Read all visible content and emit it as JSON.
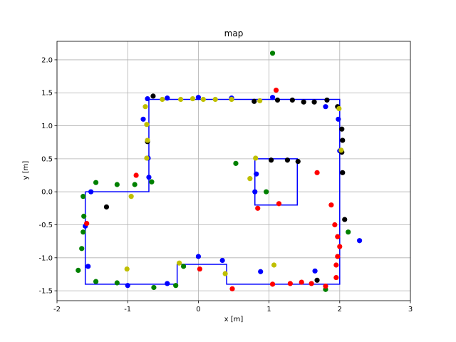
{
  "chart_data": {
    "type": "scatter",
    "title": "map",
    "xlabel": "x [m]",
    "ylabel": "y [m]",
    "xlim": [
      -2,
      3
    ],
    "ylim": [
      -1.65,
      2.28
    ],
    "grid": true,
    "x_ticks": [
      "-2",
      "-1",
      "0",
      "1",
      "2",
      "3"
    ],
    "y_ticks": [
      "-1.5",
      "-1.0",
      "-0.5",
      "0.0",
      "0.5",
      "1.0",
      "1.5",
      "2.0"
    ],
    "colors": {
      "blue": "#0000ff",
      "green": "#008000",
      "red": "#ff0000",
      "black": "#000000",
      "yellow": "#bfbf00",
      "outline": "#0000ff",
      "grid": "#b0b0b0"
    },
    "outer_outline": [
      [
        -1.6,
        0.0
      ],
      [
        -0.7,
        0.0
      ],
      [
        -0.7,
        1.4
      ],
      [
        2.0,
        1.4
      ],
      [
        2.0,
        -1.4
      ],
      [
        0.4,
        -1.4
      ],
      [
        0.4,
        -1.1
      ],
      [
        -0.3,
        -1.1
      ],
      [
        -0.3,
        -1.4
      ],
      [
        -1.6,
        -1.4
      ],
      [
        -1.6,
        0.0
      ]
    ],
    "inner_outline": [
      [
        0.8,
        0.5
      ],
      [
        1.4,
        0.5
      ],
      [
        1.4,
        -0.2
      ],
      [
        0.8,
        -0.2
      ],
      [
        0.8,
        0.5
      ]
    ],
    "series": [
      {
        "color": "blue",
        "points": [
          [
            -1.52,
            0.0
          ],
          [
            -1.6,
            -0.52
          ],
          [
            -1.56,
            -1.13
          ],
          [
            -1.0,
            -1.42
          ],
          [
            -0.44,
            -1.39
          ],
          [
            -0.78,
            1.1
          ],
          [
            -0.71,
            0.51
          ],
          [
            -0.7,
            0.22
          ],
          [
            -0.72,
            1.41
          ],
          [
            -0.44,
            1.42
          ],
          [
            0.0,
            1.43
          ],
          [
            0.47,
            1.42
          ],
          [
            1.05,
            1.43
          ],
          [
            1.8,
            1.29
          ],
          [
            1.98,
            1.1
          ],
          [
            2.0,
            0.62
          ],
          [
            0.82,
            0.27
          ],
          [
            0.8,
            0.0
          ],
          [
            0.0,
            -0.98
          ],
          [
            0.34,
            -1.04
          ],
          [
            0.88,
            -1.21
          ],
          [
            1.65,
            -1.2
          ],
          [
            2.28,
            -0.74
          ]
        ]
      },
      {
        "color": "green",
        "points": [
          [
            1.05,
            2.1
          ],
          [
            -1.63,
            -0.07
          ],
          [
            -1.62,
            -0.37
          ],
          [
            -1.63,
            -0.61
          ],
          [
            -1.65,
            -0.86
          ],
          [
            -1.7,
            -1.19
          ],
          [
            -1.45,
            0.14
          ],
          [
            -1.15,
            0.11
          ],
          [
            -0.9,
            0.11
          ],
          [
            -0.66,
            0.15
          ],
          [
            -1.45,
            -1.36
          ],
          [
            -1.15,
            -1.38
          ],
          [
            -0.63,
            -1.45
          ],
          [
            -0.32,
            -1.42
          ],
          [
            -0.21,
            -1.13
          ],
          [
            0.53,
            0.43
          ],
          [
            0.96,
            0.0
          ],
          [
            1.8,
            -1.48
          ],
          [
            2.12,
            -0.61
          ]
        ]
      },
      {
        "color": "red",
        "points": [
          [
            -1.58,
            -0.48
          ],
          [
            -0.88,
            0.25
          ],
          [
            0.02,
            -1.17
          ],
          [
            0.48,
            -1.47
          ],
          [
            0.84,
            -0.25
          ],
          [
            1.1,
            1.54
          ],
          [
            1.14,
            -0.18
          ],
          [
            1.05,
            -1.4
          ],
          [
            1.3,
            -1.39
          ],
          [
            1.46,
            -1.37
          ],
          [
            1.6,
            -1.39
          ],
          [
            1.8,
            -1.43
          ],
          [
            1.95,
            -1.3
          ],
          [
            1.95,
            -1.11
          ],
          [
            1.97,
            -0.98
          ],
          [
            1.97,
            -0.68
          ],
          [
            1.93,
            -0.5
          ],
          [
            1.88,
            -0.2
          ],
          [
            1.68,
            0.29
          ],
          [
            2.0,
            -0.83
          ]
        ]
      },
      {
        "color": "black",
        "points": [
          [
            -1.3,
            -0.23
          ],
          [
            -0.64,
            1.45
          ],
          [
            -0.72,
            0.76
          ],
          [
            0.79,
            1.37
          ],
          [
            1.12,
            1.39
          ],
          [
            1.33,
            1.39
          ],
          [
            1.49,
            1.36
          ],
          [
            1.64,
            1.36
          ],
          [
            1.82,
            1.39
          ],
          [
            1.97,
            1.29
          ],
          [
            2.03,
            0.95
          ],
          [
            2.04,
            0.78
          ],
          [
            2.03,
            0.6
          ],
          [
            2.04,
            0.29
          ],
          [
            2.07,
            -0.42
          ],
          [
            1.03,
            0.48
          ],
          [
            1.26,
            0.48
          ],
          [
            1.41,
            0.46
          ],
          [
            1.68,
            -1.34
          ]
        ]
      },
      {
        "color": "yellow",
        "points": [
          [
            -0.75,
            1.29
          ],
          [
            -0.73,
            1.02
          ],
          [
            -0.72,
            0.78
          ],
          [
            -0.73,
            0.51
          ],
          [
            -0.95,
            -0.07
          ],
          [
            -1.01,
            -1.17
          ],
          [
            -0.51,
            1.4
          ],
          [
            -0.25,
            1.4
          ],
          [
            -0.08,
            1.41
          ],
          [
            0.07,
            1.4
          ],
          [
            0.24,
            1.4
          ],
          [
            0.47,
            1.4
          ],
          [
            0.87,
            1.38
          ],
          [
            0.73,
            0.2
          ],
          [
            0.81,
            0.51
          ],
          [
            0.38,
            -1.24
          ],
          [
            -0.27,
            -1.08
          ],
          [
            1.07,
            -1.11
          ],
          [
            1.99,
            1.26
          ],
          [
            2.02,
            0.63
          ]
        ]
      }
    ]
  }
}
